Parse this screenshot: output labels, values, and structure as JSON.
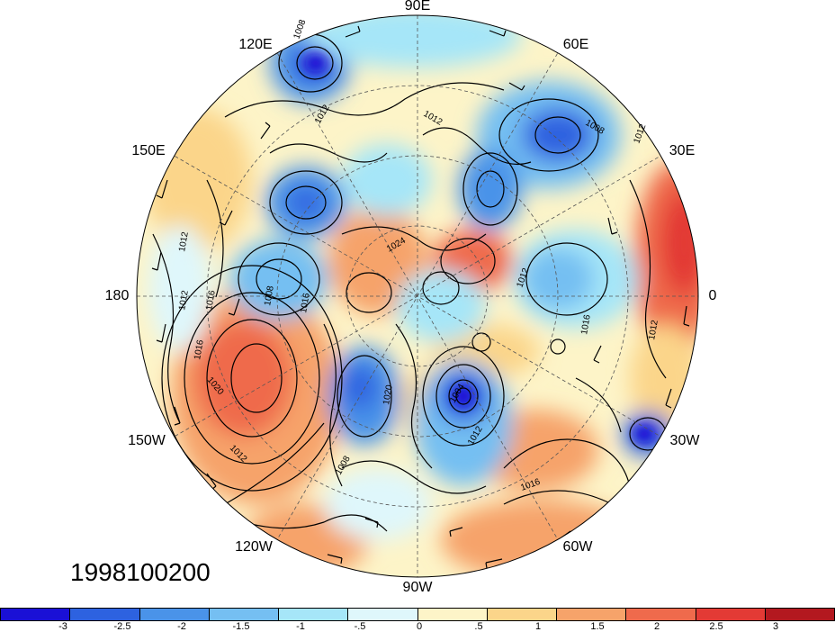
{
  "lon_labels": {
    "n90e": "90E",
    "n120e": "120E",
    "n60e": "60E",
    "n150e": "150E",
    "n30e": "30E",
    "n180": "180",
    "n0": "0",
    "n150w": "150W",
    "n30w": "30W",
    "n120w": "120W",
    "n60w": "60W",
    "n90w": "90W"
  },
  "date_stamp": "1998100200",
  "colorbar": {
    "colors": [
      "#1a10d6",
      "#2d62e0",
      "#4a93e9",
      "#75bff2",
      "#a6e6f8",
      "#dff7fb",
      "#fdf4c8",
      "#fbd58a",
      "#f6a36a",
      "#ef6a4c",
      "#e33a35",
      "#b3181f"
    ],
    "ticks": [
      "-3",
      "-2.5",
      "-2",
      "-1.5",
      "-1",
      "-.5",
      "0",
      ".5",
      "1",
      "1.5",
      "2",
      "2.5",
      "3"
    ]
  },
  "contour_labels": [
    "1008",
    "1012",
    "1012",
    "1012",
    "1008",
    "1012",
    "1008",
    "1016",
    "1020",
    "1012",
    "1012",
    "1016",
    "1012",
    "1016",
    "1012",
    "1016",
    "1016",
    "1020",
    "1012",
    "1024",
    "1004",
    "1008"
  ]
}
